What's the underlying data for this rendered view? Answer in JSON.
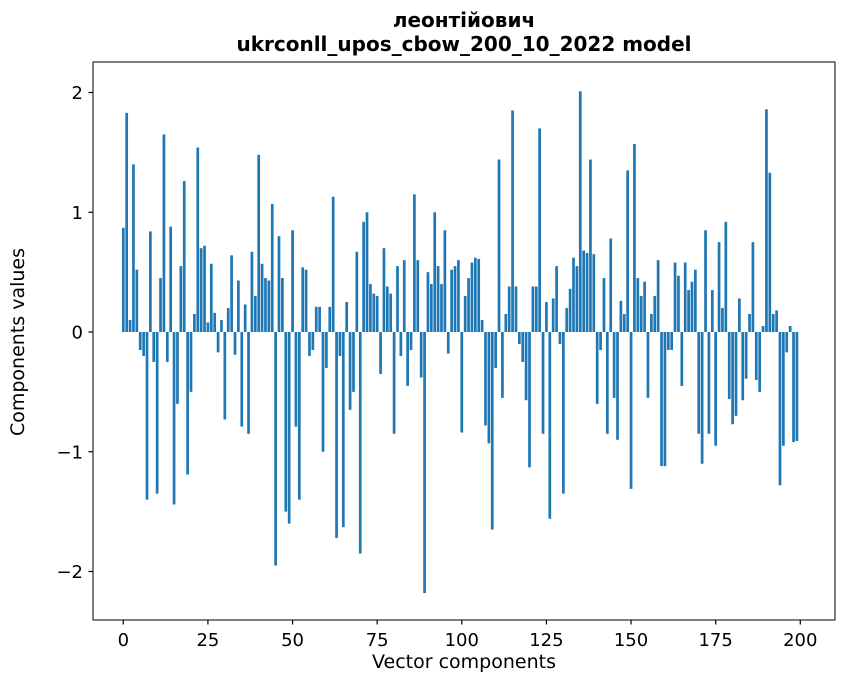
{
  "figure": {
    "title_line1": "леонтійович",
    "title_line2": "ukrconll_upos_cbow_200_10_2022 model"
  },
  "chart_data": {
    "type": "bar",
    "title": "леонтійович — ukrconll_upos_cbow_200_10_2022 model",
    "xlabel": "Vector components",
    "ylabel": "Components values",
    "bar_color": "#1f77b4",
    "axis_color": "#000000",
    "background": "#ffffff",
    "grid": false,
    "legend": null,
    "x_description": "vector component index, 0 to 199",
    "xticks": [
      0,
      25,
      50,
      75,
      100,
      125,
      150,
      175,
      200
    ],
    "yticks": [
      2,
      1,
      0,
      -1,
      -2
    ],
    "xlim": [
      -9.0,
      210.3
    ],
    "ylim": [
      -2.41,
      2.26
    ],
    "values": [
      0.87,
      1.83,
      0.1,
      1.4,
      0.52,
      -0.15,
      -0.2,
      -1.4,
      0.84,
      -0.25,
      -1.35,
      0.45,
      1.65,
      -0.25,
      0.88,
      -1.44,
      -0.6,
      0.55,
      1.26,
      -1.19,
      -0.5,
      0.15,
      1.54,
      0.7,
      0.72,
      0.08,
      0.57,
      0.16,
      -0.17,
      0.1,
      -0.73,
      0.2,
      0.64,
      -0.19,
      0.43,
      -0.79,
      0.23,
      -0.85,
      0.67,
      0.3,
      1.48,
      0.57,
      0.45,
      0.43,
      1.07,
      -1.95,
      0.8,
      0.45,
      -1.5,
      -1.6,
      0.85,
      -0.79,
      -1.4,
      0.54,
      0.52,
      -0.2,
      -0.15,
      0.21,
      0.21,
      -1.0,
      -0.3,
      0.21,
      1.13,
      -1.72,
      -0.2,
      -1.63,
      0.25,
      -0.65,
      -0.5,
      0.67,
      -1.85,
      0.92,
      1.0,
      0.4,
      0.32,
      0.3,
      -0.35,
      0.7,
      0.38,
      0.32,
      -0.85,
      0.55,
      -0.2,
      0.6,
      -0.45,
      -0.15,
      1.15,
      0.6,
      -0.38,
      -2.18,
      0.5,
      0.4,
      1.0,
      0.55,
      0.4,
      0.85,
      -0.18,
      0.52,
      0.55,
      0.6,
      -0.84,
      0.3,
      0.45,
      0.58,
      0.62,
      0.61,
      0.1,
      -0.78,
      -0.93,
      -1.65,
      -0.3,
      1.44,
      -0.55,
      0.15,
      0.38,
      1.85,
      0.38,
      -0.1,
      -0.25,
      -0.57,
      -1.13,
      0.38,
      0.38,
      1.7,
      -0.85,
      0.25,
      -1.56,
      0.28,
      0.55,
      -0.1,
      -1.35,
      0.2,
      0.36,
      0.62,
      0.55,
      2.01,
      0.68,
      0.66,
      1.44,
      0.65,
      -0.6,
      -0.15,
      0.45,
      -0.85,
      0.78,
      -0.55,
      -0.9,
      0.26,
      0.15,
      1.35,
      -1.31,
      1.57,
      0.45,
      0.3,
      0.42,
      -0.55,
      0.15,
      0.3,
      0.6,
      -1.12,
      -1.12,
      -0.15,
      -0.15,
      0.58,
      0.47,
      -0.45,
      0.58,
      0.35,
      0.42,
      0.52,
      -0.85,
      -1.1,
      0.85,
      -0.85,
      0.35,
      -0.95,
      0.75,
      0.2,
      0.92,
      -0.56,
      -0.77,
      -0.7,
      0.28,
      -0.57,
      -0.39,
      0.15,
      0.75,
      -0.4,
      -0.5,
      0.05,
      1.86,
      1.33,
      0.15,
      0.18,
      -1.28,
      -0.95,
      -0.17,
      0.05,
      -0.92,
      -0.91
    ]
  }
}
